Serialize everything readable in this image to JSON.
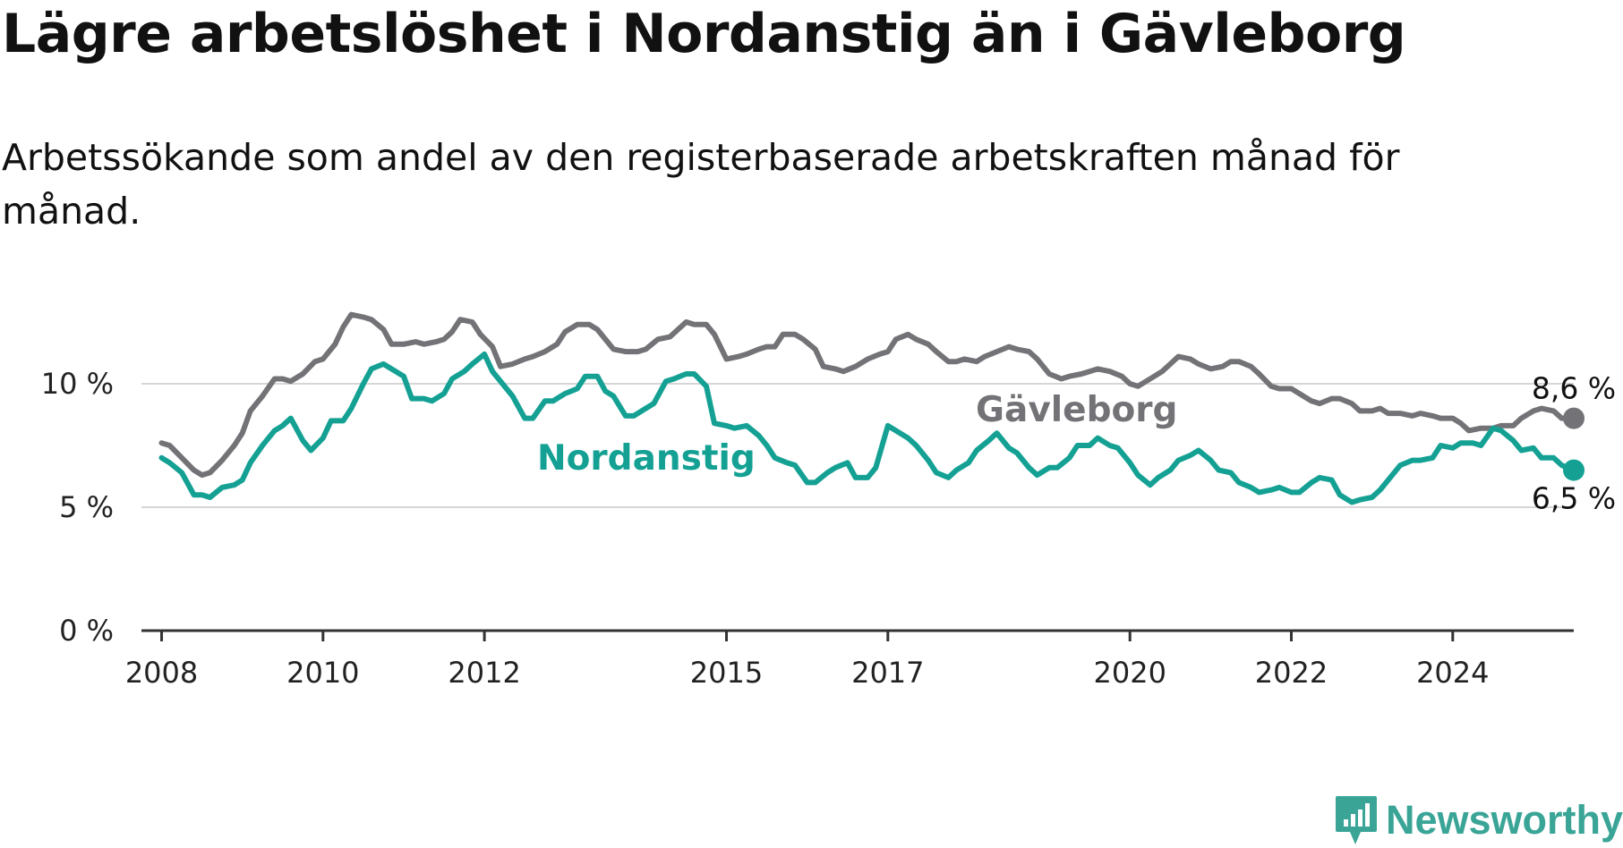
{
  "title": "Lägre arbetslöshet i Nordanstig än i Gävleborg",
  "subtitle": "Arbetssökande som andel av den registerbaserade arbetskraften månad för månad.",
  "brand": {
    "name": "Newsworthy",
    "color": "#3aa597",
    "icon": "chart-bubble-icon"
  },
  "chart_data": {
    "type": "line",
    "title": "",
    "xlabel": "",
    "ylabel": "",
    "ylim": [
      0,
      12.5
    ],
    "xlim": [
      2007.75,
      2025.5
    ],
    "grid": true,
    "yticks": [
      {
        "value": 0,
        "label": "0 %"
      },
      {
        "value": 5,
        "label": "5 %"
      },
      {
        "value": 10,
        "label": "10 %"
      }
    ],
    "xticks": [
      {
        "value": 2008,
        "label": "2008"
      },
      {
        "value": 2010,
        "label": "2010"
      },
      {
        "value": 2012,
        "label": "2012"
      },
      {
        "value": 2015,
        "label": "2015"
      },
      {
        "value": 2017,
        "label": "2017"
      },
      {
        "value": 2020,
        "label": "2020"
      },
      {
        "value": 2022,
        "label": "2022"
      },
      {
        "value": 2024,
        "label": "2024"
      }
    ],
    "series": [
      {
        "name": "Gävleborg",
        "color": "#737276",
        "end_label": "8,6 %",
        "points": [
          [
            2008.0,
            7.6
          ],
          [
            2008.1,
            7.5
          ],
          [
            2008.25,
            7.0
          ],
          [
            2008.4,
            6.5
          ],
          [
            2008.5,
            6.3
          ],
          [
            2008.6,
            6.4
          ],
          [
            2008.75,
            6.9
          ],
          [
            2008.9,
            7.5
          ],
          [
            2009.0,
            8.0
          ],
          [
            2009.1,
            8.9
          ],
          [
            2009.25,
            9.5
          ],
          [
            2009.4,
            10.2
          ],
          [
            2009.5,
            10.2
          ],
          [
            2009.6,
            10.1
          ],
          [
            2009.75,
            10.4
          ],
          [
            2009.9,
            10.9
          ],
          [
            2010.0,
            11.0
          ],
          [
            2010.15,
            11.6
          ],
          [
            2010.25,
            12.3
          ],
          [
            2010.35,
            12.8
          ],
          [
            2010.5,
            12.7
          ],
          [
            2010.6,
            12.6
          ],
          [
            2010.75,
            12.2
          ],
          [
            2010.85,
            11.6
          ],
          [
            2011.0,
            11.6
          ],
          [
            2011.15,
            11.7
          ],
          [
            2011.25,
            11.6
          ],
          [
            2011.4,
            11.7
          ],
          [
            2011.5,
            11.8
          ],
          [
            2011.6,
            12.1
          ],
          [
            2011.7,
            12.6
          ],
          [
            2011.85,
            12.5
          ],
          [
            2011.95,
            12.0
          ],
          [
            2012.1,
            11.5
          ],
          [
            2012.2,
            10.7
          ],
          [
            2012.35,
            10.8
          ],
          [
            2012.5,
            11.0
          ],
          [
            2012.6,
            11.1
          ],
          [
            2012.75,
            11.3
          ],
          [
            2012.9,
            11.6
          ],
          [
            2013.0,
            12.1
          ],
          [
            2013.15,
            12.4
          ],
          [
            2013.3,
            12.4
          ],
          [
            2013.4,
            12.2
          ],
          [
            2013.5,
            11.8
          ],
          [
            2013.6,
            11.4
          ],
          [
            2013.75,
            11.3
          ],
          [
            2013.9,
            11.3
          ],
          [
            2014.0,
            11.4
          ],
          [
            2014.15,
            11.8
          ],
          [
            2014.3,
            11.9
          ],
          [
            2014.4,
            12.2
          ],
          [
            2014.5,
            12.5
          ],
          [
            2014.6,
            12.4
          ],
          [
            2014.75,
            12.4
          ],
          [
            2014.85,
            12.0
          ],
          [
            2015.0,
            11.0
          ],
          [
            2015.15,
            11.1
          ],
          [
            2015.25,
            11.2
          ],
          [
            2015.4,
            11.4
          ],
          [
            2015.5,
            11.5
          ],
          [
            2015.6,
            11.5
          ],
          [
            2015.7,
            12.0
          ],
          [
            2015.85,
            12.0
          ],
          [
            2015.95,
            11.8
          ],
          [
            2016.1,
            11.4
          ],
          [
            2016.2,
            10.7
          ],
          [
            2016.35,
            10.6
          ],
          [
            2016.45,
            10.5
          ],
          [
            2016.6,
            10.7
          ],
          [
            2016.75,
            11.0
          ],
          [
            2016.9,
            11.2
          ],
          [
            2017.0,
            11.3
          ],
          [
            2017.1,
            11.8
          ],
          [
            2017.25,
            12.0
          ],
          [
            2017.35,
            11.8
          ],
          [
            2017.5,
            11.6
          ],
          [
            2017.6,
            11.3
          ],
          [
            2017.75,
            10.9
          ],
          [
            2017.85,
            10.9
          ],
          [
            2017.95,
            11.0
          ],
          [
            2018.1,
            10.9
          ],
          [
            2018.2,
            11.1
          ],
          [
            2018.35,
            11.3
          ],
          [
            2018.5,
            11.5
          ],
          [
            2018.6,
            11.4
          ],
          [
            2018.75,
            11.3
          ],
          [
            2018.85,
            11.0
          ],
          [
            2019.0,
            10.4
          ],
          [
            2019.15,
            10.2
          ],
          [
            2019.25,
            10.3
          ],
          [
            2019.4,
            10.4
          ],
          [
            2019.5,
            10.5
          ],
          [
            2019.6,
            10.6
          ],
          [
            2019.75,
            10.5
          ],
          [
            2019.9,
            10.3
          ],
          [
            2020.0,
            10.0
          ],
          [
            2020.1,
            9.9
          ],
          [
            2020.25,
            10.2
          ],
          [
            2020.4,
            10.5
          ],
          [
            2020.5,
            10.8
          ],
          [
            2020.6,
            11.1
          ],
          [
            2020.75,
            11.0
          ],
          [
            2020.85,
            10.8
          ],
          [
            2021.0,
            10.6
          ],
          [
            2021.15,
            10.7
          ],
          [
            2021.25,
            10.9
          ],
          [
            2021.35,
            10.9
          ],
          [
            2021.5,
            10.7
          ],
          [
            2021.6,
            10.4
          ],
          [
            2021.75,
            9.9
          ],
          [
            2021.85,
            9.8
          ],
          [
            2022.0,
            9.8
          ],
          [
            2022.15,
            9.5
          ],
          [
            2022.25,
            9.3
          ],
          [
            2022.35,
            9.2
          ],
          [
            2022.5,
            9.4
          ],
          [
            2022.6,
            9.4
          ],
          [
            2022.75,
            9.2
          ],
          [
            2022.85,
            8.9
          ],
          [
            2023.0,
            8.9
          ],
          [
            2023.1,
            9.0
          ],
          [
            2023.2,
            8.8
          ],
          [
            2023.35,
            8.8
          ],
          [
            2023.5,
            8.7
          ],
          [
            2023.6,
            8.8
          ],
          [
            2023.75,
            8.7
          ],
          [
            2023.85,
            8.6
          ],
          [
            2024.0,
            8.6
          ],
          [
            2024.1,
            8.4
          ],
          [
            2024.2,
            8.1
          ],
          [
            2024.35,
            8.2
          ],
          [
            2024.5,
            8.2
          ],
          [
            2024.6,
            8.3
          ],
          [
            2024.75,
            8.3
          ],
          [
            2024.85,
            8.6
          ],
          [
            2025.0,
            8.9
          ],
          [
            2025.1,
            9.0
          ],
          [
            2025.25,
            8.9
          ],
          [
            2025.35,
            8.6
          ],
          [
            2025.5,
            8.6
          ]
        ]
      },
      {
        "name": "Nordanstig",
        "color": "#14a194",
        "end_label": "6,5 %",
        "points": [
          [
            2008.0,
            7.0
          ],
          [
            2008.1,
            6.8
          ],
          [
            2008.25,
            6.4
          ],
          [
            2008.4,
            5.5
          ],
          [
            2008.5,
            5.5
          ],
          [
            2008.6,
            5.4
          ],
          [
            2008.75,
            5.8
          ],
          [
            2008.9,
            5.9
          ],
          [
            2009.0,
            6.1
          ],
          [
            2009.1,
            6.8
          ],
          [
            2009.25,
            7.5
          ],
          [
            2009.4,
            8.1
          ],
          [
            2009.5,
            8.3
          ],
          [
            2009.6,
            8.6
          ],
          [
            2009.75,
            7.7
          ],
          [
            2009.85,
            7.3
          ],
          [
            2010.0,
            7.8
          ],
          [
            2010.1,
            8.5
          ],
          [
            2010.25,
            8.5
          ],
          [
            2010.35,
            9.0
          ],
          [
            2010.5,
            10.0
          ],
          [
            2010.6,
            10.6
          ],
          [
            2010.75,
            10.8
          ],
          [
            2010.85,
            10.6
          ],
          [
            2011.0,
            10.3
          ],
          [
            2011.1,
            9.4
          ],
          [
            2011.25,
            9.4
          ],
          [
            2011.35,
            9.3
          ],
          [
            2011.5,
            9.6
          ],
          [
            2011.6,
            10.2
          ],
          [
            2011.75,
            10.5
          ],
          [
            2011.85,
            10.8
          ],
          [
            2012.0,
            11.2
          ],
          [
            2012.1,
            10.5
          ],
          [
            2012.25,
            9.9
          ],
          [
            2012.35,
            9.5
          ],
          [
            2012.5,
            8.6
          ],
          [
            2012.6,
            8.6
          ],
          [
            2012.75,
            9.3
          ],
          [
            2012.85,
            9.3
          ],
          [
            2013.0,
            9.6
          ],
          [
            2013.15,
            9.8
          ],
          [
            2013.25,
            10.3
          ],
          [
            2013.4,
            10.3
          ],
          [
            2013.5,
            9.7
          ],
          [
            2013.6,
            9.5
          ],
          [
            2013.75,
            8.7
          ],
          [
            2013.85,
            8.7
          ],
          [
            2014.0,
            9.0
          ],
          [
            2014.1,
            9.2
          ],
          [
            2014.25,
            10.1
          ],
          [
            2014.35,
            10.2
          ],
          [
            2014.5,
            10.4
          ],
          [
            2014.6,
            10.4
          ],
          [
            2014.75,
            9.9
          ],
          [
            2014.85,
            8.4
          ],
          [
            2015.0,
            8.3
          ],
          [
            2015.1,
            8.2
          ],
          [
            2015.25,
            8.3
          ],
          [
            2015.4,
            7.9
          ],
          [
            2015.5,
            7.5
          ],
          [
            2015.6,
            7.0
          ],
          [
            2015.75,
            6.8
          ],
          [
            2015.85,
            6.7
          ],
          [
            2016.0,
            6.0
          ],
          [
            2016.1,
            6.0
          ],
          [
            2016.25,
            6.4
          ],
          [
            2016.35,
            6.6
          ],
          [
            2016.5,
            6.8
          ],
          [
            2016.6,
            6.2
          ],
          [
            2016.75,
            6.2
          ],
          [
            2016.85,
            6.6
          ],
          [
            2017.0,
            8.3
          ],
          [
            2017.1,
            8.1
          ],
          [
            2017.25,
            7.8
          ],
          [
            2017.35,
            7.5
          ],
          [
            2017.5,
            6.9
          ],
          [
            2017.6,
            6.4
          ],
          [
            2017.75,
            6.2
          ],
          [
            2017.85,
            6.5
          ],
          [
            2018.0,
            6.8
          ],
          [
            2018.1,
            7.3
          ],
          [
            2018.25,
            7.7
          ],
          [
            2018.35,
            8.0
          ],
          [
            2018.5,
            7.4
          ],
          [
            2018.6,
            7.2
          ],
          [
            2018.75,
            6.6
          ],
          [
            2018.85,
            6.3
          ],
          [
            2019.0,
            6.6
          ],
          [
            2019.1,
            6.6
          ],
          [
            2019.25,
            7.0
          ],
          [
            2019.35,
            7.5
          ],
          [
            2019.5,
            7.5
          ],
          [
            2019.6,
            7.8
          ],
          [
            2019.75,
            7.5
          ],
          [
            2019.85,
            7.4
          ],
          [
            2020.0,
            6.8
          ],
          [
            2020.1,
            6.3
          ],
          [
            2020.25,
            5.9
          ],
          [
            2020.35,
            6.2
          ],
          [
            2020.5,
            6.5
          ],
          [
            2020.6,
            6.9
          ],
          [
            2020.75,
            7.1
          ],
          [
            2020.85,
            7.3
          ],
          [
            2021.0,
            6.9
          ],
          [
            2021.1,
            6.5
          ],
          [
            2021.25,
            6.4
          ],
          [
            2021.35,
            6.0
          ],
          [
            2021.5,
            5.8
          ],
          [
            2021.6,
            5.6
          ],
          [
            2021.75,
            5.7
          ],
          [
            2021.85,
            5.8
          ],
          [
            2022.0,
            5.6
          ],
          [
            2022.1,
            5.6
          ],
          [
            2022.25,
            6.0
          ],
          [
            2022.35,
            6.2
          ],
          [
            2022.5,
            6.1
          ],
          [
            2022.6,
            5.5
          ],
          [
            2022.75,
            5.2
          ],
          [
            2022.85,
            5.3
          ],
          [
            2023.0,
            5.4
          ],
          [
            2023.1,
            5.7
          ],
          [
            2023.25,
            6.3
          ],
          [
            2023.35,
            6.7
          ],
          [
            2023.5,
            6.9
          ],
          [
            2023.6,
            6.9
          ],
          [
            2023.75,
            7.0
          ],
          [
            2023.85,
            7.5
          ],
          [
            2024.0,
            7.4
          ],
          [
            2024.1,
            7.6
          ],
          [
            2024.25,
            7.6
          ],
          [
            2024.35,
            7.5
          ],
          [
            2024.5,
            8.2
          ],
          [
            2024.6,
            8.1
          ],
          [
            2024.75,
            7.7
          ],
          [
            2024.85,
            7.3
          ],
          [
            2025.0,
            7.4
          ],
          [
            2025.1,
            7.0
          ],
          [
            2025.25,
            7.0
          ],
          [
            2025.35,
            6.7
          ],
          [
            2025.5,
            6.5
          ]
        ]
      }
    ]
  }
}
